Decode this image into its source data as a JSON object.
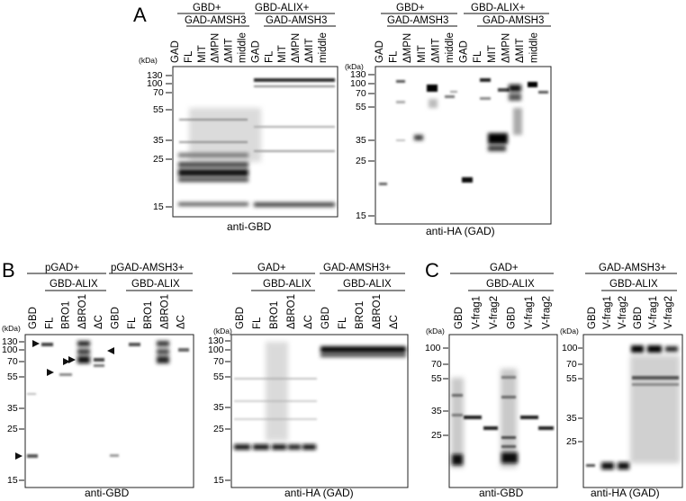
{
  "panels": [
    {
      "id": "A",
      "label": "A",
      "blots": [
        {
          "id": "A1",
          "caption": "anti-GBD",
          "kda_label": "(kDa)",
          "markers": [
            "130",
            "100",
            "70",
            "55",
            "35",
            "25",
            "15"
          ],
          "groups": [
            {
              "label": "GBD+",
              "sub": "GAD-AMSH3"
            },
            {
              "label": "GBD-ALIX+",
              "sub": "GAD-AMSH3"
            }
          ],
          "lanes": [
            "GAD",
            "FL",
            "MIT",
            "ΔMPN",
            "ΔMIT",
            "middle",
            "GAD",
            "FL",
            "MIT",
            "ΔMPN",
            "ΔMIT",
            "middle"
          ]
        },
        {
          "id": "A2",
          "caption": "anti-HA (GAD)",
          "kda_label": "(kDa)",
          "markers": [
            "130",
            "100",
            "70",
            "55",
            "35",
            "25",
            "15"
          ],
          "groups": [
            {
              "label": "GBD+",
              "sub": "GAD-AMSH3"
            },
            {
              "label": "GBD-ALIX+",
              "sub": "GAD-AMSH3"
            }
          ],
          "lanes": [
            "GAD",
            "FL",
            "ΔMPN",
            "MIT",
            "ΔMIT",
            "middle",
            "GAD",
            "FL",
            "MIT",
            "ΔMPN",
            "ΔMIT",
            "middle"
          ]
        }
      ]
    },
    {
      "id": "B",
      "label": "B",
      "blots": [
        {
          "id": "B1",
          "caption": "anti-GBD",
          "kda_label": "(kDa)",
          "markers": [
            "130",
            "100",
            "70",
            "55",
            "35",
            "25",
            "15"
          ],
          "groups": [
            {
              "label": "pGAD+",
              "sub": "GBD-ALIX"
            },
            {
              "label": "pGAD-AMSH3+",
              "sub": "GBD-ALIX"
            }
          ],
          "lanes": [
            "GBD",
            "FL",
            "BRO1",
            "ΔBRO1",
            "ΔC",
            "GBD",
            "FL",
            "BRO1",
            "ΔBRO1",
            "ΔC"
          ]
        },
        {
          "id": "B2",
          "caption": "anti-HA (GAD)",
          "kda_label": "(kDa)",
          "markers": [
            "130",
            "100",
            "70",
            "55",
            "35",
            "25",
            "15"
          ],
          "groups": [
            {
              "label": "GAD+",
              "sub": "GBD-ALIX"
            },
            {
              "label": "GAD-AMSH3+",
              "sub": "GBD-ALIX"
            }
          ],
          "lanes": [
            "GBD",
            "FL",
            "BRO1",
            "ΔBRO1",
            "ΔC",
            "GBD",
            "FL",
            "BRO1",
            "ΔBRO1",
            "ΔC"
          ]
        }
      ]
    },
    {
      "id": "C",
      "label": "C",
      "blots": [
        {
          "id": "C1",
          "caption": "anti-GBD",
          "kda_label": "(kDa)",
          "markers": [
            "100",
            "70",
            "55",
            "35",
            "25"
          ],
          "groups": [
            {
              "label": "GAD+",
              "sub": "GBD-ALIX"
            }
          ],
          "lanes": [
            "GBD",
            "V-frag1",
            "V-frag2",
            "GBD",
            "V-frag1",
            "V-frag2"
          ]
        },
        {
          "id": "C2",
          "caption": "anti-HA (GAD)",
          "kda_label": "(kDa)",
          "markers": [
            "100",
            "70",
            "55",
            "35",
            "25"
          ],
          "groups": [
            {
              "label": "GAD-AMSH3+",
              "sub": "GBD-ALIX"
            }
          ],
          "lanes": [
            "GBD",
            "V-frag1",
            "V-frag2",
            "GBD",
            "V-frag1",
            "V-frag2"
          ]
        }
      ]
    }
  ]
}
